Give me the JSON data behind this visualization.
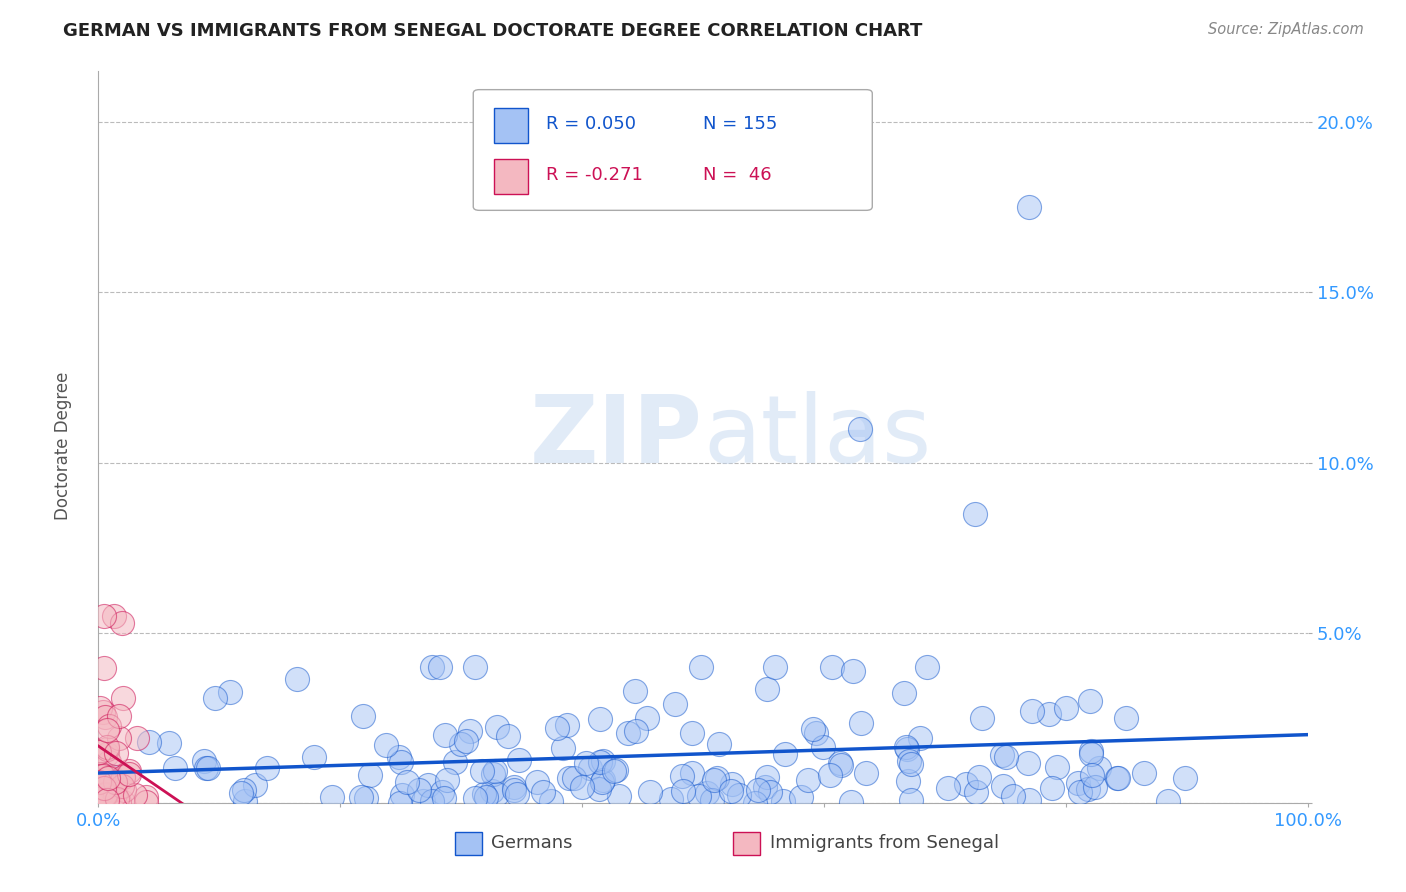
{
  "title": "GERMAN VS IMMIGRANTS FROM SENEGAL DOCTORATE DEGREE CORRELATION CHART",
  "source": "Source: ZipAtlas.com",
  "xlabel_german": "Germans",
  "xlabel_senegal": "Immigrants from Senegal",
  "ylabel": "Doctorate Degree",
  "xlim": [
    0,
    1
  ],
  "ylim": [
    0,
    0.215
  ],
  "ytick_positions": [
    0,
    0.05,
    0.1,
    0.15,
    0.2
  ],
  "ytick_labels": [
    "",
    "5.0%",
    "10.0%",
    "15.0%",
    "20.0%"
  ],
  "xtick_positions": [
    0,
    0.2,
    0.4,
    0.6,
    0.8,
    1.0
  ],
  "xtick_labels": [
    "0.0%",
    "",
    "",
    "",
    "",
    "100.0%"
  ],
  "german_color": "#a4c2f4",
  "senegal_color": "#f4b8c1",
  "trendline_german_color": "#1155cc",
  "trendline_senegal_color": "#cc1155",
  "watermark_zip": "ZIP",
  "watermark_atlas": "atlas",
  "background_color": "#ffffff",
  "grid_color": "#bbbbbb",
  "title_color": "#222222",
  "tick_label_color": "#3399ff",
  "R_german": 0.05,
  "N_german": 155,
  "R_senegal": -0.271,
  "N_senegal": 46,
  "legend_r_german": "R = 0.050",
  "legend_n_german": "N = 155",
  "legend_r_senegal": "R = -0.271",
  "legend_n_senegal": "N =  46"
}
